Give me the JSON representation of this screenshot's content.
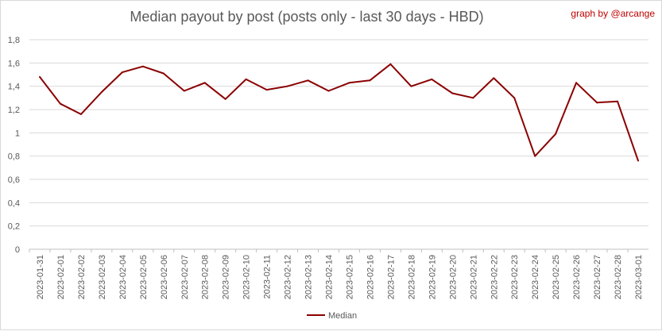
{
  "chart_data": {
    "type": "line",
    "title": "Median payout by post (posts only - last 30 days - HBD)",
    "credit": "graph by @arcange",
    "ylim": [
      0,
      1.8
    ],
    "yticks": [
      "0",
      "0,2",
      "0,4",
      "0,6",
      "0,8",
      "1",
      "1,2",
      "1,4",
      "1,6",
      "1,8"
    ],
    "grid": true,
    "legend_position": "bottom",
    "categories": [
      "2023-01-31",
      "2023-02-01",
      "2023-02-02",
      "2023-02-03",
      "2023-02-04",
      "2023-02-05",
      "2023-02-06",
      "2023-02-07",
      "2023-02-08",
      "2023-02-09",
      "2023-02-10",
      "2023-02-11",
      "2023-02-12",
      "2023-02-13",
      "2023-02-14",
      "2023-02-15",
      "2023-02-16",
      "2023-02-17",
      "2023-02-18",
      "2023-02-19",
      "2023-02-20",
      "2023-02-21",
      "2023-02-22",
      "2023-02-23",
      "2023-02-24",
      "2023-02-25",
      "2023-02-26",
      "2023-02-27",
      "2023-02-28",
      "2023-03-01"
    ],
    "series": [
      {
        "name": "Median",
        "color": "#8b0000",
        "values": [
          1.48,
          1.25,
          1.16,
          1.35,
          1.52,
          1.57,
          1.51,
          1.36,
          1.43,
          1.29,
          1.46,
          1.37,
          1.4,
          1.45,
          1.36,
          1.43,
          1.45,
          1.59,
          1.4,
          1.46,
          1.34,
          1.3,
          1.47,
          1.3,
          0.8,
          0.99,
          1.43,
          1.26,
          1.27,
          0.76
        ]
      }
    ]
  }
}
